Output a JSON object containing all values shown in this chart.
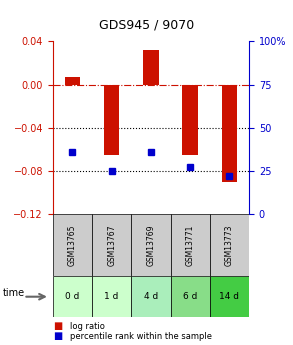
{
  "title": "GDS945 / 9070",
  "categories": [
    "GSM13765",
    "GSM13767",
    "GSM13769",
    "GSM13771",
    "GSM13773"
  ],
  "time_labels": [
    "0 d",
    "1 d",
    "4 d",
    "6 d",
    "14 d"
  ],
  "log_ratio": [
    0.007,
    -0.065,
    0.032,
    -0.065,
    -0.09
  ],
  "percentile_rank": [
    0.36,
    0.25,
    0.36,
    0.27,
    0.22
  ],
  "bar_color": "#cc1100",
  "dot_color": "#0000cc",
  "ylim_left": [
    -0.12,
    0.04
  ],
  "ylim_right": [
    0,
    100
  ],
  "yticks_left": [
    0.04,
    0,
    -0.04,
    -0.08,
    -0.12
  ],
  "yticks_right": [
    100,
    75,
    50,
    25,
    0
  ],
  "hline_positions": [
    0,
    -0.04,
    -0.08
  ],
  "hline_styles": [
    "dashdot",
    "dotted",
    "dotted"
  ],
  "hline_colors": [
    "#cc1100",
    "black",
    "black"
  ],
  "gsm_bg_color": "#cccccc",
  "time_bg_colors": [
    "#ccffcc",
    "#ccffcc",
    "#aaeebb",
    "#88dd88",
    "#44cc44"
  ],
  "legend_items": [
    "log ratio",
    "percentile rank within the sample"
  ],
  "legend_colors": [
    "#cc1100",
    "#0000cc"
  ],
  "time_arrow_label": "time"
}
